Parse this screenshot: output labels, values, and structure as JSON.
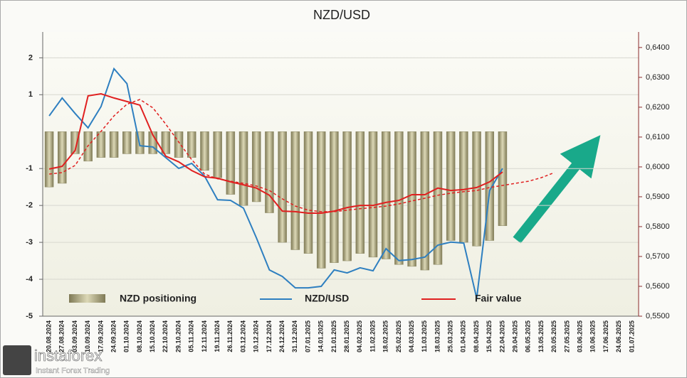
{
  "chart_data": {
    "type": "bar",
    "title": "NZD/USD",
    "categories": [
      "20.08.2024",
      "27.08.2024",
      "03.09.2024",
      "10.09.2024",
      "17.09.2024",
      "24.09.2024",
      "01.10.2024",
      "08.10.2024",
      "15.10.2024",
      "22.10.2024",
      "29.10.2024",
      "05.11.2024",
      "12.11.2024",
      "19.11.2024",
      "26.11.2024",
      "03.12.2024",
      "10.12.2024",
      "17.12.2024",
      "24.12.2024",
      "31.12.2024",
      "07.01.2025",
      "14.01.2025",
      "21.01.2025",
      "28.01.2025",
      "04.02.2025",
      "11.02.2025",
      "18.02.2025",
      "25.02.2025",
      "04.03.2025",
      "11.03.2025",
      "18.03.2025",
      "25.03.2025",
      "01.04.2025",
      "08.04.2025",
      "15.04.2025",
      "22.04.2025",
      "29.04.2025",
      "06.05.2025",
      "13.05.2025",
      "20.05.2025",
      "27.05.2025",
      "03.06.2025",
      "10.06.2025",
      "17.06.2025",
      "24.06.2025",
      "01.07.2025"
    ],
    "series": [
      {
        "name": "NZD positioning",
        "type": "bar",
        "color": "#b8b48a",
        "values": [
          -1.5,
          -1.4,
          -0.6,
          -0.8,
          -0.7,
          -0.7,
          -0.6,
          -0.6,
          -0.6,
          -0.6,
          -0.7,
          -0.7,
          -1.05,
          -1.25,
          -1.7,
          -2.0,
          -1.9,
          -2.2,
          -3.0,
          -3.2,
          -3.3,
          -3.7,
          -3.55,
          -3.5,
          -3.3,
          -3.4,
          -3.45,
          -3.6,
          -3.65,
          -3.75,
          -3.6,
          -2.95,
          -3.0,
          -3.1,
          -2.95,
          -2.55,
          null,
          null,
          null,
          null,
          null,
          null,
          null,
          null,
          null,
          null
        ]
      },
      {
        "name": "NZD/USD",
        "type": "line",
        "axis": "y2",
        "color": "#2e7fc0",
        "values": [
          0.6171,
          0.6231,
          0.6179,
          0.6131,
          0.6202,
          0.6329,
          0.6279,
          0.6071,
          0.6067,
          0.6031,
          0.5995,
          0.6012,
          0.5969,
          0.589,
          0.5888,
          0.5862,
          0.5762,
          0.5655,
          0.5633,
          0.5595,
          0.5595,
          0.56,
          0.5655,
          0.5645,
          0.5662,
          0.5652,
          0.5726,
          0.5686,
          0.569,
          0.5698,
          0.5738,
          0.5748,
          0.5745,
          0.556,
          0.5921,
          0.5995,
          null,
          null,
          null,
          null,
          null,
          null,
          null,
          null,
          null,
          null
        ]
      },
      {
        "name": "Fair value",
        "type": "line",
        "axis": "y2",
        "color": "#e02020",
        "values": [
          0.5993,
          0.6002,
          0.6055,
          0.6238,
          0.6245,
          0.6231,
          0.6219,
          0.6207,
          0.6107,
          0.6036,
          0.6017,
          0.5988,
          0.5967,
          0.5962,
          0.595,
          0.594,
          0.5929,
          0.5905,
          0.5852,
          0.585,
          0.5845,
          0.5845,
          0.5852,
          0.5864,
          0.5871,
          0.5871,
          0.5881,
          0.5888,
          0.5907,
          0.5907,
          0.5929,
          0.5921,
          0.5924,
          0.5931,
          0.595,
          0.5983,
          null,
          null,
          null,
          null,
          null,
          null,
          null,
          null,
          null,
          null
        ]
      },
      {
        "type": "line",
        "axis": "y2",
        "dashed": true,
        "color": "#e02020",
        "values": [
          0.5976,
          0.5981,
          0.6005,
          0.6071,
          0.6119,
          0.6171,
          0.621,
          0.6226,
          0.6198,
          0.6143,
          0.6083,
          0.6024,
          0.5976,
          0.596,
          0.5952,
          0.5945,
          0.5936,
          0.5921,
          0.5893,
          0.5869,
          0.5855,
          0.585,
          0.585,
          0.5855,
          0.586,
          0.5864,
          0.5869,
          0.5876,
          0.5886,
          0.5895,
          0.5905,
          0.5912,
          0.5917,
          0.5921,
          0.5931,
          0.5938,
          0.5945,
          0.5952,
          0.5964,
          0.5981,
          null,
          null,
          null,
          null,
          null,
          null
        ]
      }
    ],
    "ylim": [
      -5,
      2.7
    ],
    "yticks": [
      2,
      1,
      -1,
      -2,
      -3,
      -4,
      -5
    ],
    "grid": true,
    "y2lim": [
      0.55,
      0.6452
    ],
    "y2ticks": [
      {
        "value": 0.64,
        "label": "0,6400"
      },
      {
        "value": 0.63,
        "label": "0,6300"
      },
      {
        "value": 0.62,
        "label": "0,6200"
      },
      {
        "value": 0.61,
        "label": "0,6100"
      },
      {
        "value": 0.6,
        "label": "0,6000"
      },
      {
        "value": 0.59,
        "label": "0,5900"
      },
      {
        "value": 0.58,
        "label": "0,5800"
      },
      {
        "value": 0.57,
        "label": "0,5700"
      },
      {
        "value": 0.56,
        "label": "0,5600"
      },
      {
        "value": 0.55,
        "label": "0,5500"
      }
    ]
  },
  "logo": {
    "name": "instaforex",
    "tagline": "Instant Forex Trading"
  }
}
